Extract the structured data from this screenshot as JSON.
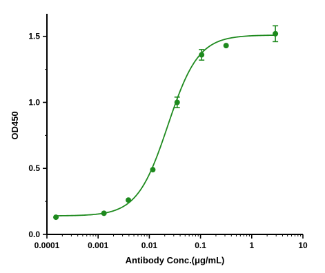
{
  "chart_data": {
    "type": "scatter",
    "title": "",
    "xlabel": "Antibody Conc.(μg/mL)",
    "ylabel": "OD450",
    "xscale": "log",
    "xlim": [
      0.0001,
      10
    ],
    "ylim": [
      0,
      1.65
    ],
    "x_tick_labels": [
      "0.0001",
      "0.001",
      "0.01",
      "0.1",
      "1",
      "10"
    ],
    "x_tick_values": [
      0.0001,
      0.001,
      0.01,
      0.1,
      1,
      10
    ],
    "y_tick_labels": [
      "0.0",
      "0.5",
      "1.0",
      "1.5"
    ],
    "y_tick_values": [
      0,
      0.5,
      1.0,
      1.5
    ],
    "grid": false,
    "legend": "none",
    "color": "#1e8a1e",
    "series": [
      {
        "points": [
          {
            "x": 0.00015,
            "y": 0.13,
            "err": 0
          },
          {
            "x": 0.0013,
            "y": 0.16,
            "err": 0
          },
          {
            "x": 0.0039,
            "y": 0.26,
            "err": 0
          },
          {
            "x": 0.0117,
            "y": 0.49,
            "err": 0
          },
          {
            "x": 0.035,
            "y": 1.0,
            "err": 0.04
          },
          {
            "x": 0.105,
            "y": 1.36,
            "err": 0.04
          },
          {
            "x": 0.316,
            "y": 1.43,
            "err": 0
          },
          {
            "x": 2.9,
            "y": 1.52,
            "err": 0.06
          }
        ]
      }
    ],
    "fit": {
      "type": "4PL",
      "bottom": 0.14,
      "top": 1.51,
      "ec50": 0.023,
      "hill": 1.45
    }
  }
}
